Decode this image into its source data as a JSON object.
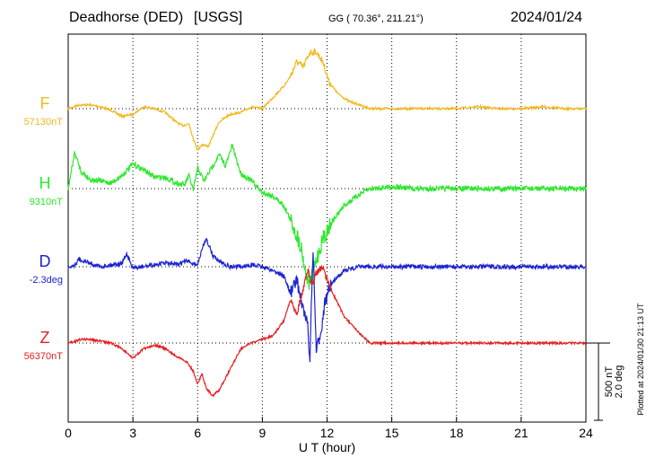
{
  "header": {
    "station": "Deadhorse (DED)",
    "network": "[USGS]",
    "coords": "GG ( 70.36°, 211.21°)",
    "date": "2024/01/24"
  },
  "chart_data": {
    "type": "line",
    "xlabel": "U T (hour)",
    "xlim": [
      0,
      24
    ],
    "xticks": [
      0,
      3,
      6,
      9,
      12,
      15,
      18,
      21,
      24
    ],
    "xticks_labels": [
      "0",
      "3",
      "6",
      "9",
      "12",
      "15",
      "18",
      "21",
      "24"
    ],
    "grid": true,
    "scale_bar": {
      "nT": "500 nT",
      "deg": "2.0 deg"
    },
    "plotted_note": "Plotted at 2024/01/30 21:13 UT",
    "series": [
      {
        "name": "F",
        "baseline_label": "57130nT",
        "color": "#f2b81e",
        "x": [
          0,
          0.5,
          1,
          1.5,
          2,
          2.5,
          3,
          3.5,
          4,
          4.5,
          5,
          5.3,
          5.6,
          5.8,
          6,
          6.2,
          6.5,
          6.8,
          7,
          7.5,
          8,
          8.5,
          9,
          9.5,
          10,
          10.3,
          10.6,
          10.9,
          11.2,
          11.5,
          11.8,
          12.1,
          12.5,
          13,
          13.5,
          14,
          15,
          16,
          17,
          18,
          19,
          20,
          21,
          22,
          23,
          24
        ],
        "y": [
          0,
          40,
          40,
          20,
          -20,
          -80,
          -60,
          20,
          0,
          -40,
          -140,
          -180,
          -160,
          -320,
          -440,
          -380,
          -400,
          -240,
          -140,
          -60,
          -40,
          20,
          0,
          120,
          240,
          340,
          500,
          440,
          600,
          600,
          500,
          280,
          160,
          80,
          40,
          0,
          0,
          0,
          0,
          0,
          20,
          0,
          0,
          20,
          0,
          0
        ]
      },
      {
        "name": "H",
        "baseline_label": "9310nT",
        "color": "#2ee82e",
        "x": [
          0,
          0.3,
          0.6,
          1,
          1.5,
          2,
          2.5,
          3,
          3.5,
          4,
          4.5,
          5,
          5.4,
          5.6,
          5.8,
          6,
          6.3,
          6.6,
          7,
          7.3,
          7.6,
          8,
          8.5,
          9,
          9.5,
          10,
          10.4,
          10.8,
          11,
          11.2,
          11.5,
          11.8,
          12.2,
          12.8,
          13.5,
          14,
          15,
          16,
          17,
          18,
          19,
          20,
          21,
          22,
          23,
          24
        ],
        "y": [
          0,
          380,
          180,
          100,
          80,
          60,
          140,
          260,
          200,
          120,
          120,
          60,
          40,
          140,
          -20,
          220,
          80,
          200,
          360,
          240,
          460,
          160,
          80,
          -40,
          -80,
          -180,
          -380,
          -620,
          -880,
          -1020,
          -760,
          -540,
          -360,
          -180,
          -60,
          0,
          20,
          0,
          0,
          0,
          0,
          0,
          0,
          0,
          0,
          0
        ]
      },
      {
        "name": "D",
        "baseline_label": "-2.3deg",
        "color": "#1c23d4",
        "x": [
          0,
          0.3,
          0.5,
          1,
          1.5,
          2,
          2.5,
          2.7,
          3,
          3.5,
          4,
          4.5,
          5,
          5.5,
          6,
          6.2,
          6.4,
          6.7,
          7,
          7.5,
          8,
          8.5,
          9,
          9.5,
          10,
          10.3,
          10.6,
          10.9,
          11.1,
          11.2,
          11.35,
          11.5,
          11.7,
          11.9,
          12.1,
          12.4,
          12.8,
          13.5,
          14,
          15,
          16,
          17,
          18,
          19,
          20,
          21,
          22,
          23,
          24
        ],
        "y": [
          0,
          20,
          80,
          40,
          0,
          20,
          40,
          140,
          -20,
          0,
          20,
          40,
          20,
          60,
          20,
          180,
          300,
          120,
          60,
          0,
          0,
          20,
          0,
          -40,
          -100,
          -280,
          -140,
          -460,
          -620,
          -1000,
          200,
          -900,
          -700,
          -380,
          -240,
          -120,
          -40,
          0,
          0,
          0,
          0,
          0,
          0,
          0,
          0,
          0,
          0,
          0,
          0
        ]
      },
      {
        "name": "Z",
        "baseline_label": "56370nT",
        "color": "#e61e1e",
        "x": [
          0,
          0.3,
          0.6,
          1,
          1.5,
          2,
          2.5,
          3,
          3.5,
          4,
          4.5,
          5,
          5.5,
          5.8,
          6,
          6.2,
          6.4,
          6.7,
          7,
          7.5,
          8,
          8.5,
          9,
          9.5,
          10,
          10.3,
          10.6,
          10.9,
          11.1,
          11.3,
          11.5,
          11.8,
          12.2,
          12.8,
          13.5,
          14,
          15,
          16,
          17,
          18,
          19,
          20,
          21,
          22,
          23,
          24
        ],
        "y": [
          0,
          20,
          40,
          40,
          20,
          0,
          -60,
          -160,
          -60,
          -20,
          -60,
          -140,
          -200,
          -300,
          -440,
          -320,
          -480,
          -560,
          -500,
          -280,
          -60,
          0,
          40,
          80,
          240,
          460,
          320,
          580,
          780,
          620,
          740,
          800,
          560,
          280,
          100,
          0,
          0,
          0,
          0,
          0,
          0,
          0,
          0,
          0,
          0,
          0
        ]
      }
    ]
  }
}
